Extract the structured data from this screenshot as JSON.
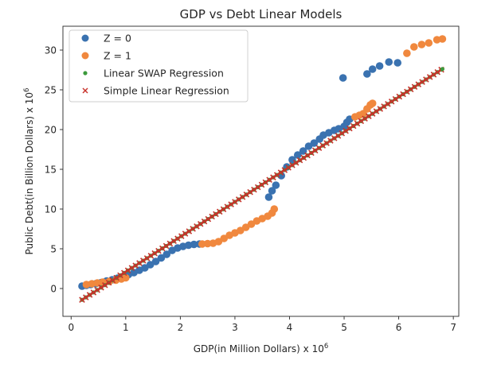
{
  "chart_data": {
    "type": "scatter",
    "title": "GDP vs Debt Linear Models",
    "xlabel": "GDP(in Million Dollars) x 10",
    "xlabel_sup": "6",
    "ylabel": "Public Debt(in Billion Dollars) x 10",
    "ylabel_sup": "6",
    "xlim": [
      -0.15,
      7.1
    ],
    "ylim": [
      -3.5,
      33
    ],
    "x_ticks": [
      0,
      1,
      2,
      3,
      4,
      5,
      6,
      7
    ],
    "x_tick_labels": [
      "0",
      "1",
      "2",
      "3",
      "4",
      "5",
      "6",
      "7"
    ],
    "y_ticks": [
      0,
      5,
      10,
      15,
      20,
      25,
      30
    ],
    "y_tick_labels": [
      "0",
      "5",
      "10",
      "15",
      "20",
      "25",
      "30"
    ],
    "grid": false,
    "legend_position": "top-left",
    "series": [
      {
        "name": "Z = 0",
        "marker": "circle",
        "color": "#3a72b0",
        "points": [
          [
            0.2,
            0.3
          ],
          [
            0.28,
            0.4
          ],
          [
            0.36,
            0.5
          ],
          [
            0.45,
            0.6
          ],
          [
            0.55,
            0.75
          ],
          [
            0.65,
            0.95
          ],
          [
            0.75,
            1.1
          ],
          [
            0.85,
            1.3
          ],
          [
            0.95,
            1.5
          ],
          [
            1.05,
            1.75
          ],
          [
            1.15,
            2.0
          ],
          [
            1.25,
            2.3
          ],
          [
            1.35,
            2.6
          ],
          [
            1.45,
            3.0
          ],
          [
            1.55,
            3.4
          ],
          [
            1.65,
            3.85
          ],
          [
            1.75,
            4.3
          ],
          [
            1.85,
            4.8
          ],
          [
            1.95,
            5.1
          ],
          [
            2.05,
            5.3
          ],
          [
            2.15,
            5.45
          ],
          [
            2.25,
            5.55
          ],
          [
            2.35,
            5.6
          ],
          [
            3.62,
            11.5
          ],
          [
            3.68,
            12.3
          ],
          [
            3.75,
            13.0
          ],
          [
            3.85,
            14.2
          ],
          [
            3.95,
            15.3
          ],
          [
            4.05,
            16.2
          ],
          [
            4.15,
            16.8
          ],
          [
            4.25,
            17.3
          ],
          [
            4.35,
            17.9
          ],
          [
            4.45,
            18.3
          ],
          [
            4.55,
            18.8
          ],
          [
            4.62,
            19.3
          ],
          [
            4.72,
            19.6
          ],
          [
            4.82,
            19.9
          ],
          [
            4.9,
            20.1
          ],
          [
            5.0,
            20.4
          ],
          [
            5.05,
            20.9
          ],
          [
            5.1,
            21.3
          ],
          [
            4.98,
            26.5
          ],
          [
            5.42,
            27.0
          ],
          [
            5.52,
            27.6
          ],
          [
            5.65,
            28.0
          ],
          [
            5.82,
            28.5
          ],
          [
            5.98,
            28.4
          ]
        ]
      },
      {
        "name": "Z = 1",
        "marker": "circle",
        "color": "#f0883e",
        "points": [
          [
            0.28,
            0.5
          ],
          [
            0.38,
            0.6
          ],
          [
            0.48,
            0.7
          ],
          [
            0.58,
            0.8
          ],
          [
            0.7,
            0.9
          ],
          [
            0.82,
            1.05
          ],
          [
            0.92,
            1.2
          ],
          [
            1.0,
            1.35
          ],
          [
            2.4,
            5.6
          ],
          [
            2.5,
            5.65
          ],
          [
            2.6,
            5.7
          ],
          [
            2.7,
            5.9
          ],
          [
            2.8,
            6.3
          ],
          [
            2.9,
            6.7
          ],
          [
            3.0,
            7.0
          ],
          [
            3.1,
            7.3
          ],
          [
            3.2,
            7.7
          ],
          [
            3.3,
            8.1
          ],
          [
            3.4,
            8.5
          ],
          [
            3.5,
            8.8
          ],
          [
            3.6,
            9.1
          ],
          [
            3.68,
            9.5
          ],
          [
            3.72,
            10.0
          ],
          [
            5.2,
            21.6
          ],
          [
            5.28,
            21.8
          ],
          [
            5.35,
            22.0
          ],
          [
            5.42,
            22.6
          ],
          [
            5.48,
            23.1
          ],
          [
            5.52,
            23.3
          ],
          [
            6.15,
            29.6
          ],
          [
            6.28,
            30.4
          ],
          [
            6.42,
            30.7
          ],
          [
            6.55,
            30.9
          ],
          [
            6.7,
            31.3
          ],
          [
            6.8,
            31.4
          ]
        ]
      },
      {
        "name": "Linear SWAP Regression",
        "marker": "dot",
        "color": "#3c9a3c",
        "line": {
          "x_start": 0.2,
          "x_end": 6.8,
          "slope": 4.4,
          "intercept": -2.3,
          "step": 0.07
        },
        "points": [
          [
            6.8,
            27.62
          ]
        ]
      },
      {
        "name": "Simple Linear Regression",
        "marker": "x",
        "color": "#c8322b",
        "line": {
          "x_start": 0.2,
          "x_end": 6.8,
          "slope": 4.4,
          "intercept": -2.3,
          "step": 0.07
        },
        "points": []
      }
    ]
  }
}
